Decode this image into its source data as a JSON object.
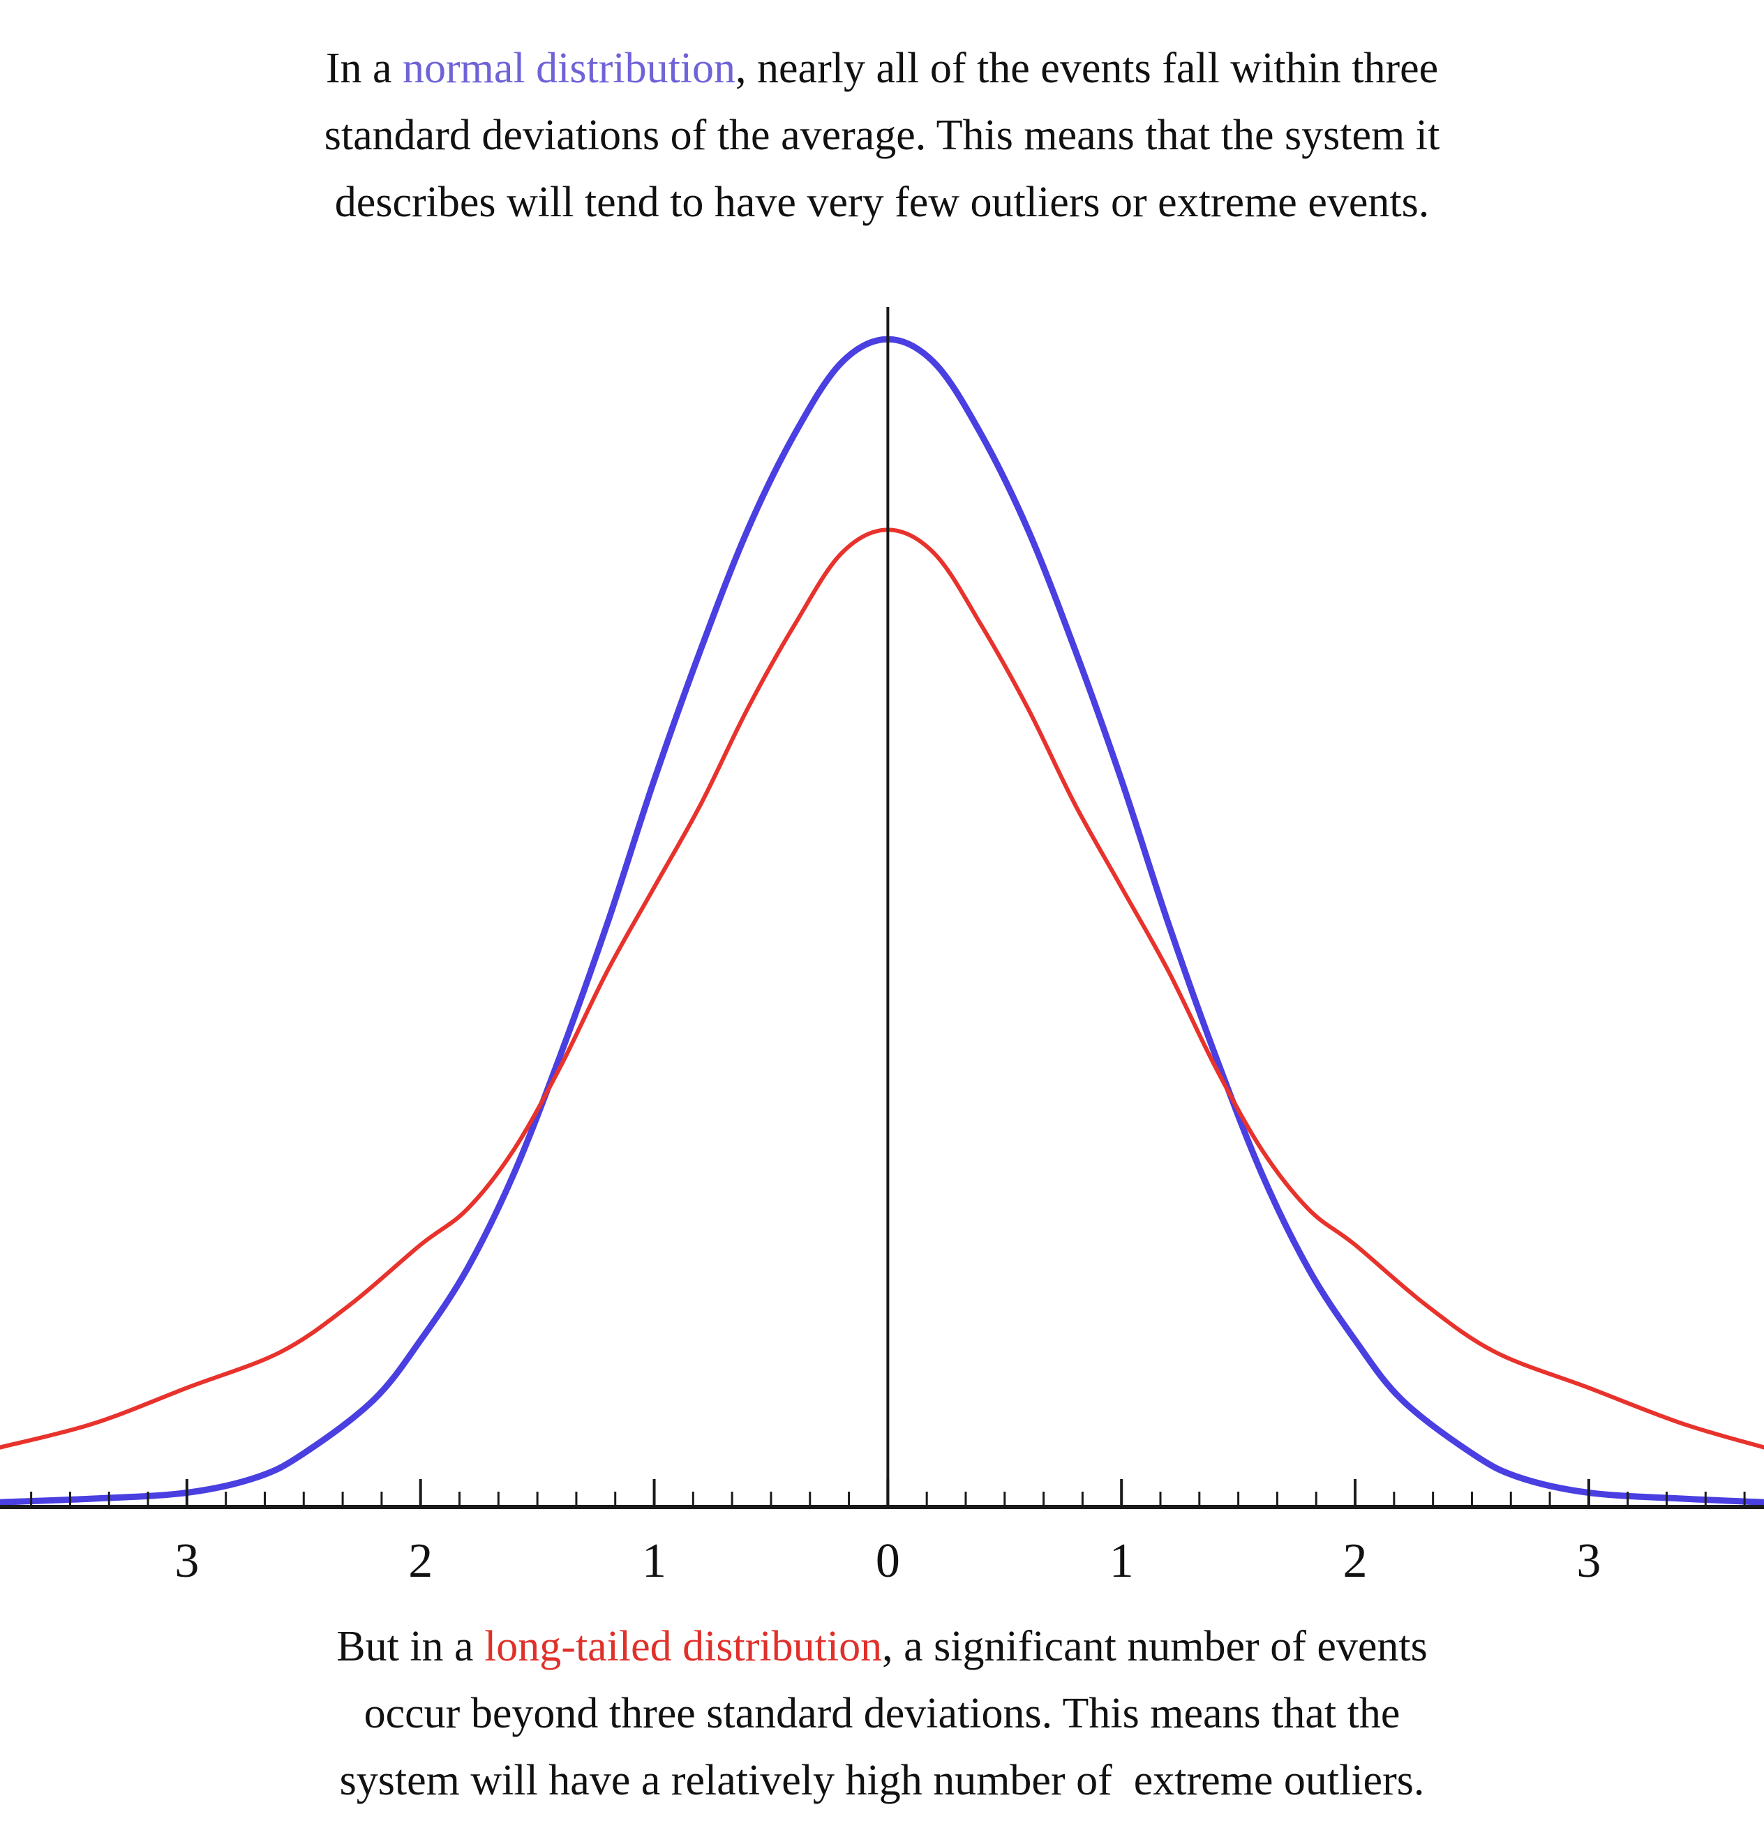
{
  "captions": {
    "top": {
      "line1_before": "In a ",
      "line1_highlight": "normal distribution",
      "line1_after": ", nearly all of the events fall within three",
      "line2": "standard deviations of the average. This means that the system it",
      "line3": "describes will tend to have very few outliers or extreme events."
    },
    "bottom": {
      "line1_before": "But in a ",
      "line1_highlight": "long-tailed distribution",
      "line1_after": ", a significant number of events",
      "line2": "occur beyond three standard deviations. This means that the",
      "line3": "system will have a relatively high number of  extreme outliers."
    }
  },
  "colors": {
    "normal": "#4a3fe0",
    "normal_text": "#6f63d8",
    "long_tail": "#e8322c",
    "long_tail_text": "#e0302a",
    "axis": "#1a1a1a"
  },
  "chart_data": {
    "type": "line",
    "title": "",
    "xlabel": "",
    "ylabel": "",
    "xlim": [
      -3.8,
      3.75
    ],
    "ylim": [
      0,
      1.0
    ],
    "grid": false,
    "legend": "none",
    "x_tick_values": [
      -3,
      -2,
      -1,
      0,
      1,
      2,
      3
    ],
    "x_tick_labels": [
      "3",
      "2",
      "1",
      "0",
      "1",
      "2",
      "3"
    ],
    "series": [
      {
        "key": "normal",
        "color": "#4a3fe0",
        "points": [
          [
            -3.8,
            0.004
          ],
          [
            -3.4,
            0.007
          ],
          [
            -3.0,
            0.012
          ],
          [
            -2.7,
            0.025
          ],
          [
            -2.5,
            0.045
          ],
          [
            -2.2,
            0.09
          ],
          [
            -2.0,
            0.14
          ],
          [
            -1.8,
            0.2
          ],
          [
            -1.6,
            0.28
          ],
          [
            -1.4,
            0.38
          ],
          [
            -1.2,
            0.49
          ],
          [
            -1.0,
            0.61
          ],
          [
            -0.8,
            0.72
          ],
          [
            -0.6,
            0.82
          ],
          [
            -0.4,
            0.9
          ],
          [
            -0.2,
            0.96
          ],
          [
            0.0,
            0.98
          ],
          [
            0.2,
            0.96
          ],
          [
            0.4,
            0.9
          ],
          [
            0.6,
            0.82
          ],
          [
            0.8,
            0.72
          ],
          [
            1.0,
            0.61
          ],
          [
            1.2,
            0.49
          ],
          [
            1.4,
            0.38
          ],
          [
            1.6,
            0.28
          ],
          [
            1.8,
            0.2
          ],
          [
            2.0,
            0.14
          ],
          [
            2.2,
            0.09
          ],
          [
            2.5,
            0.045
          ],
          [
            2.7,
            0.025
          ],
          [
            3.0,
            0.012
          ],
          [
            3.4,
            0.007
          ],
          [
            3.75,
            0.004
          ]
        ]
      },
      {
        "key": "long_tail",
        "color": "#e8322c",
        "points": [
          [
            -3.8,
            0.05
          ],
          [
            -3.4,
            0.07
          ],
          [
            -3.0,
            0.1
          ],
          [
            -2.6,
            0.13
          ],
          [
            -2.3,
            0.17
          ],
          [
            -2.0,
            0.22
          ],
          [
            -1.8,
            0.25
          ],
          [
            -1.6,
            0.3
          ],
          [
            -1.4,
            0.37
          ],
          [
            -1.2,
            0.45
          ],
          [
            -1.0,
            0.52
          ],
          [
            -0.8,
            0.59
          ],
          [
            -0.6,
            0.67
          ],
          [
            -0.4,
            0.74
          ],
          [
            -0.2,
            0.8
          ],
          [
            0.0,
            0.82
          ],
          [
            0.2,
            0.8
          ],
          [
            0.4,
            0.74
          ],
          [
            0.6,
            0.67
          ],
          [
            0.8,
            0.59
          ],
          [
            1.0,
            0.52
          ],
          [
            1.2,
            0.45
          ],
          [
            1.4,
            0.37
          ],
          [
            1.6,
            0.3
          ],
          [
            1.8,
            0.25
          ],
          [
            2.0,
            0.22
          ],
          [
            2.3,
            0.17
          ],
          [
            2.6,
            0.13
          ],
          [
            3.0,
            0.1
          ],
          [
            3.4,
            0.07
          ],
          [
            3.75,
            0.05
          ]
        ]
      }
    ]
  }
}
